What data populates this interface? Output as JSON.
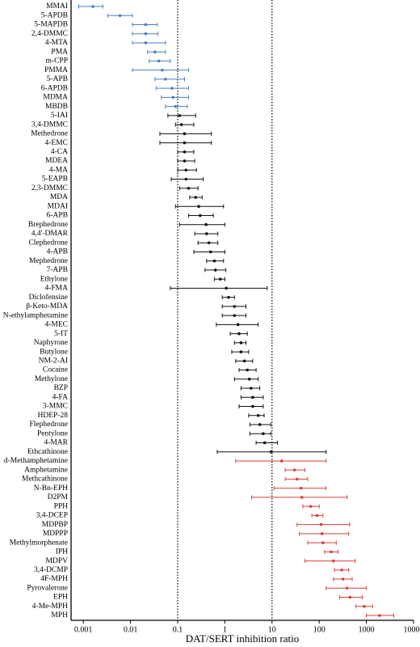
{
  "chart_data": {
    "type": "forest",
    "x_label": "DAT/SERT inhibition ratio",
    "x_scale": "log",
    "xlim": [
      0.00055,
      10000
    ],
    "xticks": [
      0.001,
      0.01,
      0.1,
      1,
      10,
      100,
      1000,
      10000
    ],
    "reference_lines": [
      0.1,
      10
    ],
    "series": [
      {
        "color": "#4a7fc1",
        "labels": [
          "MMAI",
          "5-APDB",
          "5-MAPDB",
          "2,4-DMMC",
          "4-MTA",
          "PMA",
          "m-CPP",
          "PMMA",
          "5-APB",
          "6-APDB",
          "MDMA",
          "MBDB"
        ],
        "values": [
          0.0016,
          0.006,
          0.021,
          0.021,
          0.021,
          0.033,
          0.04,
          0.047,
          0.055,
          0.076,
          0.08,
          0.09
        ],
        "lower": [
          0.0008,
          0.0033,
          0.011,
          0.011,
          0.011,
          0.023,
          0.025,
          0.011,
          0.033,
          0.035,
          0.045,
          0.055
        ],
        "upper": [
          0.0026,
          0.011,
          0.037,
          0.038,
          0.055,
          0.055,
          0.07,
          0.17,
          0.14,
          0.17,
          0.17,
          0.16
        ]
      },
      {
        "color": "#111111",
        "labels": [
          "5-IAI",
          "3,4-DMMC",
          "Methedrone",
          "4-EMC",
          "4-CA",
          "MDEA",
          "4-MA",
          "5-EAPB",
          "2,3-DMMC",
          "MDA",
          "MDAI",
          "6-APB",
          "Brephedrone",
          "4,4'-DMAR",
          "Clephedrone",
          "4-APB",
          "Mephedrone",
          "7-APB",
          "Ethylone",
          "4-FMA",
          "Diclofensine",
          "β-Keto-MDA",
          "N-ethylamphetamine",
          "4-MEC",
          "5-IT",
          "Naphyrone",
          "Butylone",
          "NM-2-AI",
          "Cocaine",
          "Methylone",
          "BZP",
          "4-FA",
          "3-MMC",
          "HDEP-28",
          "Flephedrone",
          "Pentylone",
          "4-MAR",
          "Ethcathinone"
        ],
        "values": [
          0.11,
          0.12,
          0.14,
          0.14,
          0.14,
          0.14,
          0.15,
          0.15,
          0.17,
          0.24,
          0.28,
          0.3,
          0.4,
          0.41,
          0.46,
          0.5,
          0.6,
          0.63,
          0.8,
          1.07,
          1.2,
          1.6,
          1.6,
          1.9,
          2.0,
          2.2,
          2.2,
          2.6,
          3.0,
          3.3,
          3.6,
          3.9,
          3.9,
          5.1,
          5.5,
          6.5,
          7.0,
          9.6
        ],
        "lower": [
          0.062,
          0.09,
          0.042,
          0.042,
          0.1,
          0.1,
          0.1,
          0.073,
          0.11,
          0.18,
          0.09,
          0.17,
          0.11,
          0.23,
          0.27,
          0.22,
          0.41,
          0.38,
          0.6,
          0.07,
          0.88,
          0.88,
          0.88,
          0.66,
          1.3,
          1.6,
          1.4,
          1.7,
          2.0,
          1.6,
          2.2,
          2.2,
          2.0,
          3.2,
          3.4,
          3.4,
          4.6,
          0.69
        ],
        "upper": [
          0.24,
          0.22,
          0.52,
          0.52,
          0.22,
          0.23,
          0.25,
          0.35,
          0.27,
          0.33,
          0.94,
          0.57,
          1.0,
          0.71,
          0.71,
          1.0,
          0.94,
          1.05,
          1.0,
          7.9,
          1.6,
          2.8,
          2.8,
          5.1,
          3.0,
          2.8,
          3.2,
          3.9,
          4.6,
          5.1,
          5.5,
          6.5,
          6.5,
          6.8,
          9.4,
          9.4,
          13,
          140
        ]
      },
      {
        "color": "#d9403a",
        "labels": [
          "d-Methamphetamine",
          "Amphetamine",
          "Methcathinone",
          "N-Bn-EPH",
          "D2PM",
          "PPH",
          "3,4-DCEP",
          "MDPBP",
          "MDPPP",
          "Methylmorphenate",
          "IPH",
          "MDPV",
          "3,4-DCMP",
          "4F-MPH",
          "Pyrovalerone",
          "EPH",
          "4-Me-MPH",
          "MPH"
        ],
        "values": [
          16,
          30,
          34,
          41,
          43,
          66,
          90,
          110,
          115,
          120,
          180,
          200,
          300,
          320,
          390,
          450,
          900,
          1900
        ],
        "lower": [
          1.7,
          19,
          19,
          11,
          3.7,
          45,
          70,
          34,
          38,
          57,
          130,
          50,
          210,
          200,
          140,
          270,
          600,
          1000
        ],
        "upper": [
          140,
          50,
          57,
          140,
          390,
          100,
          120,
          440,
          420,
          230,
          250,
          580,
          420,
          500,
          1000,
          820,
          1350,
          3800
        ]
      }
    ]
  }
}
